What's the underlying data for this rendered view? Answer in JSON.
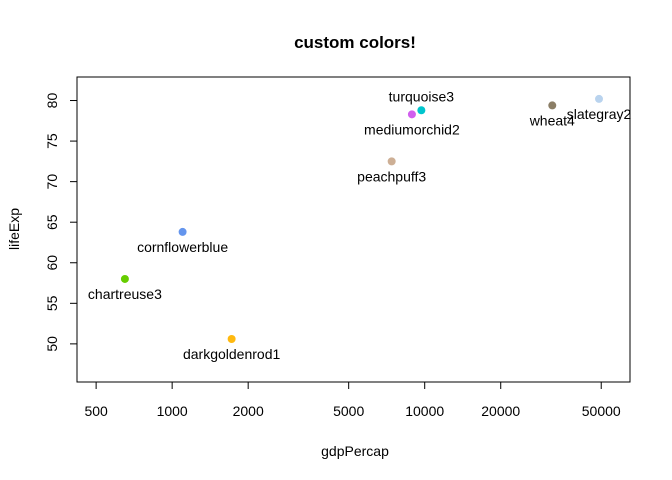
{
  "chart_data": {
    "type": "scatter",
    "title": "custom colors!",
    "xlabel": "gdpPercap",
    "ylabel": "lifeExp",
    "xscale": "log",
    "xlim": [
      420,
      65000
    ],
    "ylim": [
      45.3,
      82.9
    ],
    "xticks": [
      500,
      1000,
      2000,
      5000,
      10000,
      20000,
      50000
    ],
    "xtick_labels": [
      "500",
      "1000",
      "2000",
      "5000",
      "10000",
      "20000",
      "50000"
    ],
    "yticks": [
      50,
      55,
      60,
      65,
      70,
      75,
      80
    ],
    "ytick_labels": [
      "50",
      "55",
      "60",
      "65",
      "70",
      "75",
      "80"
    ],
    "grid": false,
    "points": [
      {
        "label": "cornflowerblue",
        "x": 1100,
        "y": 63.8,
        "color": "#6495ED",
        "label_pos": "below"
      },
      {
        "label": "chartreuse3",
        "x": 650,
        "y": 58.0,
        "color": "#66CD00",
        "label_pos": "below"
      },
      {
        "label": "darkgoldenrod1",
        "x": 1720,
        "y": 50.6,
        "color": "#FFB90F",
        "label_pos": "below"
      },
      {
        "label": "peachpuff3",
        "x": 7400,
        "y": 72.5,
        "color": "#CDAF95",
        "label_pos": "below"
      },
      {
        "label": "mediumorchid2",
        "x": 8900,
        "y": 78.3,
        "color": "#D15FEE",
        "label_pos": "below"
      },
      {
        "label": "turquoise3",
        "x": 9700,
        "y": 78.8,
        "color": "#00C5CD",
        "label_pos": "above"
      },
      {
        "label": "wheat4",
        "x": 32000,
        "y": 79.4,
        "color": "#8B7E66",
        "label_pos": "below"
      },
      {
        "label": "slategray2",
        "x": 49000,
        "y": 80.2,
        "color": "#B9D3EE",
        "label_pos": "below"
      }
    ]
  }
}
